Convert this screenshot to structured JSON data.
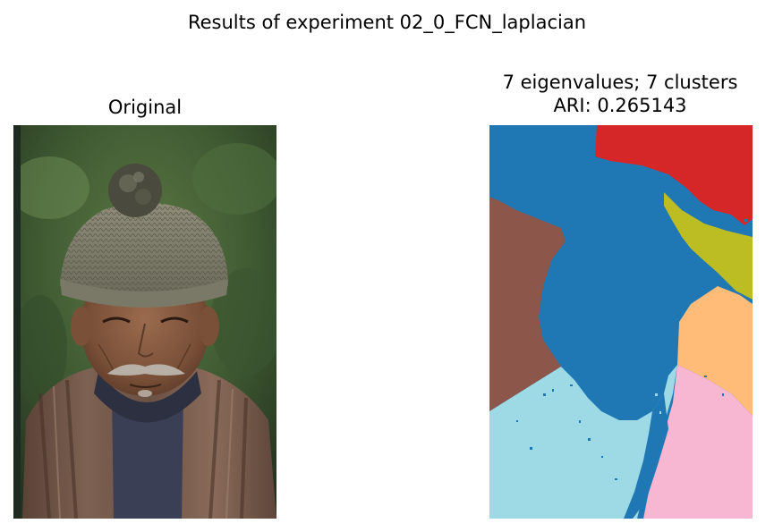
{
  "figure": {
    "suptitle": "Results of experiment 02_0_FCN_laplacian"
  },
  "left_panel": {
    "title": "Original"
  },
  "right_panel": {
    "title_line1": "7 eigenvalues; 7 clusters",
    "title_line2": "ARI: 0.265143"
  },
  "segmentation_palette": {
    "blue": "#1f77b4",
    "red": "#d62728",
    "olive": "#bcbd22",
    "brown": "#8c564b",
    "orange": "#ffbb78",
    "lightblue": "#9edae5",
    "pink": "#f7b6d2"
  }
}
